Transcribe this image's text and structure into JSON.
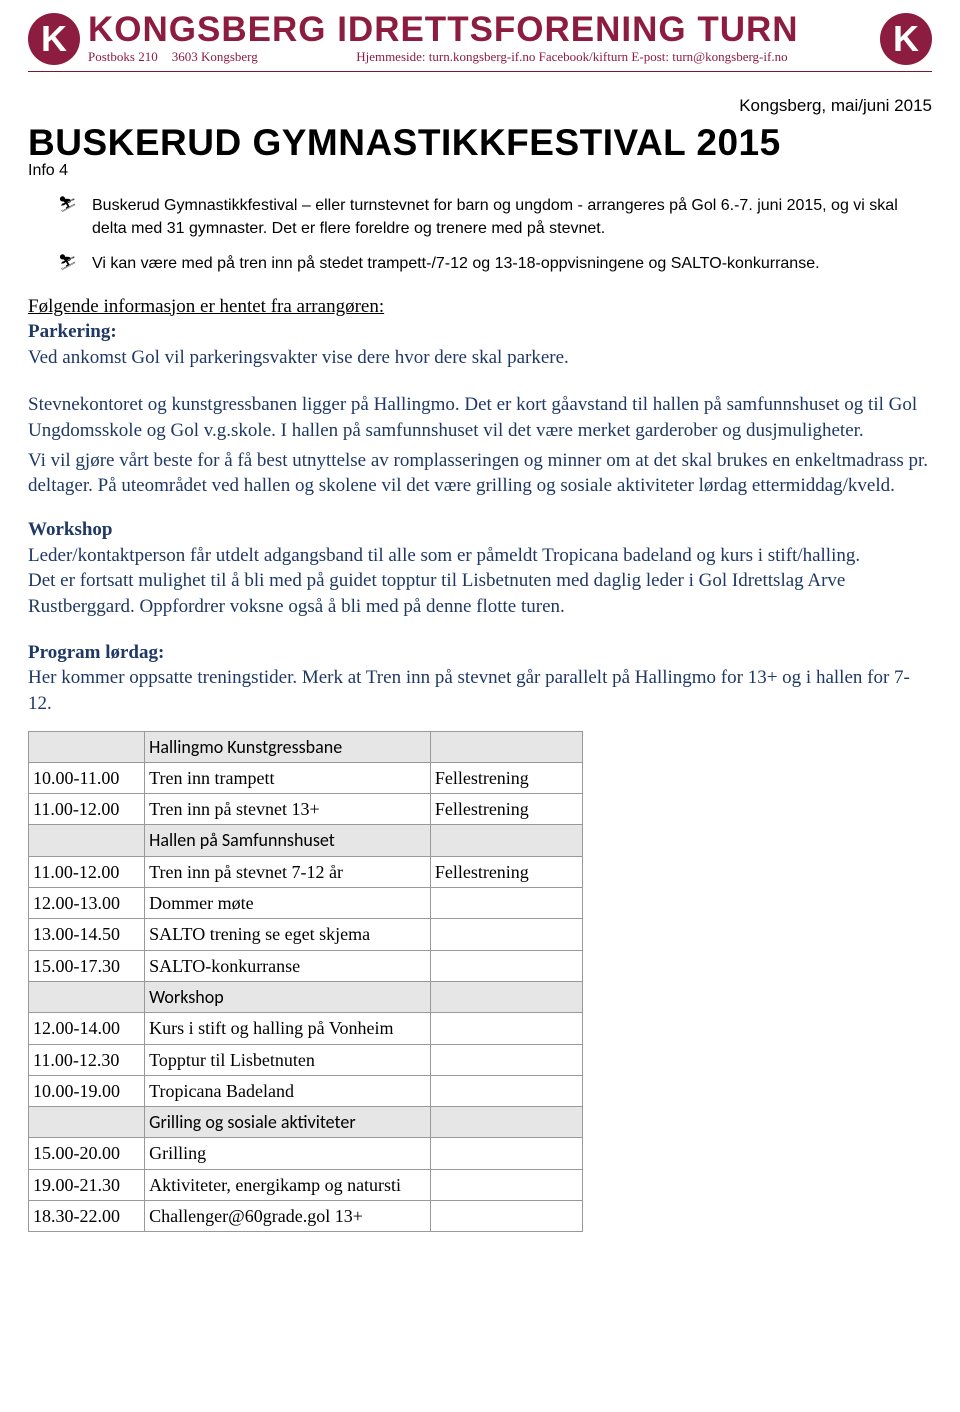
{
  "header": {
    "org_title": "KONGSBERG IDRETTSFORENING TURN",
    "logo_letter": "K",
    "logo_bg": "#8c1d40",
    "logo_fg": "#ffffff",
    "accent_color": "#8c1d40",
    "sub_address_1": "Postboks 210",
    "sub_address_2": "3603 Kongsberg",
    "sub_web": "Hjemmeside: turn.kongsberg-if.no  Facebook/kifturn  E-post: turn@kongsberg-if.no"
  },
  "date_line": "Kongsberg, mai/juni 2015",
  "main_title": "BUSKERUD GYMNASTIKKFESTIVAL 2015",
  "info_label": "Info 4",
  "bullets": [
    "Buskerud Gymnastikkfestival – eller turnstevnet for barn og ungdom - arrangeres på Gol 6.-7. juni 2015, og vi skal delta med 31 gymnaster. Det er flere foreldre og trenere med på stevnet.",
    "Vi kan være med på tren inn på stedet trampett-/7-12 og 13-18-oppvisningene og SALTO-konkurranse."
  ],
  "following_info_label": "Følgende informasjon er hentet fra arrangøren:",
  "parkering_heading": "Parkering:",
  "parkering_text": "Ved ankomst Gol vil parkeringsvakter vise dere hvor dere skal parkere.",
  "stevne_para": "Stevnekontoret og kunstgressbanen ligger på Hallingmo. Det er kort gåavstand til hallen på samfunnshuset og til Gol Ungdomsskole og Gol v.g.skole. I hallen på samfunnshuset vil det være merket garderober og dusjmuligheter.",
  "romplass_para": "Vi vil gjøre vårt beste for å få best utnyttelse av romplasseringen og minner om at det skal brukes en enkeltmadrass pr. deltager. På uteområdet ved hallen og skolene vil det være grilling og sosiale aktiviteter lørdag ettermiddag/kveld.",
  "workshop_heading": "Workshop",
  "workshop_para1": "Leder/kontaktperson får utdelt adgangsband til alle som er påmeldt Tropicana badeland og kurs i stift/halling.",
  "workshop_para2": "Det er fortsatt mulighet til å bli med på guidet topptur til Lisbetnuten med daglig leder i Gol Idrettslag Arve Rustberggard. Oppfordrer voksne også å bli med på denne flotte turen.",
  "program_heading": "Program lørdag:",
  "program_intro": "Her kommer oppsatte treningstider. Merk at Tren inn på stevnet går parallelt på Hallingmo for 13+ og i hallen for 7-12.",
  "table": {
    "section_bg": "#e6e6e6",
    "border_color": "#999999",
    "col_widths": [
      "110px",
      "290px",
      "150px"
    ],
    "rows": [
      {
        "type": "section",
        "time": "",
        "activity": "Hallingmo Kunstgressbane",
        "col3": ""
      },
      {
        "type": "row",
        "time": "10.00-11.00",
        "activity": "Tren inn trampett",
        "col3": "Fellestrening"
      },
      {
        "type": "row",
        "time": "11.00-12.00",
        "activity": "Tren inn på stevnet 13+",
        "col3": "Fellestrening"
      },
      {
        "type": "section",
        "time": "",
        "activity": "Hallen på Samfunnshuset",
        "col3": ""
      },
      {
        "type": "row",
        "time": "11.00-12.00",
        "activity": "Tren inn på stevnet 7-12 år",
        "col3": "Fellestrening"
      },
      {
        "type": "row",
        "time": "12.00-13.00",
        "activity": "Dommer møte",
        "col3": ""
      },
      {
        "type": "row",
        "time": "13.00-14.50",
        "activity": "SALTO trening se eget skjema",
        "col3": ""
      },
      {
        "type": "row",
        "time": "15.00-17.30",
        "activity": "SALTO-konkurranse",
        "col3": ""
      },
      {
        "type": "section",
        "time": "",
        "activity": "Workshop",
        "col3": ""
      },
      {
        "type": "row",
        "time": "12.00-14.00",
        "activity": "Kurs i stift og halling på Vonheim",
        "col3": ""
      },
      {
        "type": "row",
        "time": "11.00-12.30",
        "activity": "Topptur til Lisbetnuten",
        "col3": ""
      },
      {
        "type": "row",
        "time": "10.00-19.00",
        "activity": "Tropicana Badeland",
        "col3": ""
      },
      {
        "type": "section",
        "time": "",
        "activity": "Grilling og sosiale aktiviteter",
        "col3": ""
      },
      {
        "type": "row",
        "time": "15.00-20.00",
        "activity": "Grilling",
        "col3": ""
      },
      {
        "type": "row",
        "time": "19.00-21.30",
        "activity": "Aktiviteter, energikamp og natursti",
        "col3": ""
      },
      {
        "type": "row",
        "time": "18.30-22.00",
        "activity": "Challenger@60grade.gol  13+",
        "col3": ""
      }
    ]
  }
}
